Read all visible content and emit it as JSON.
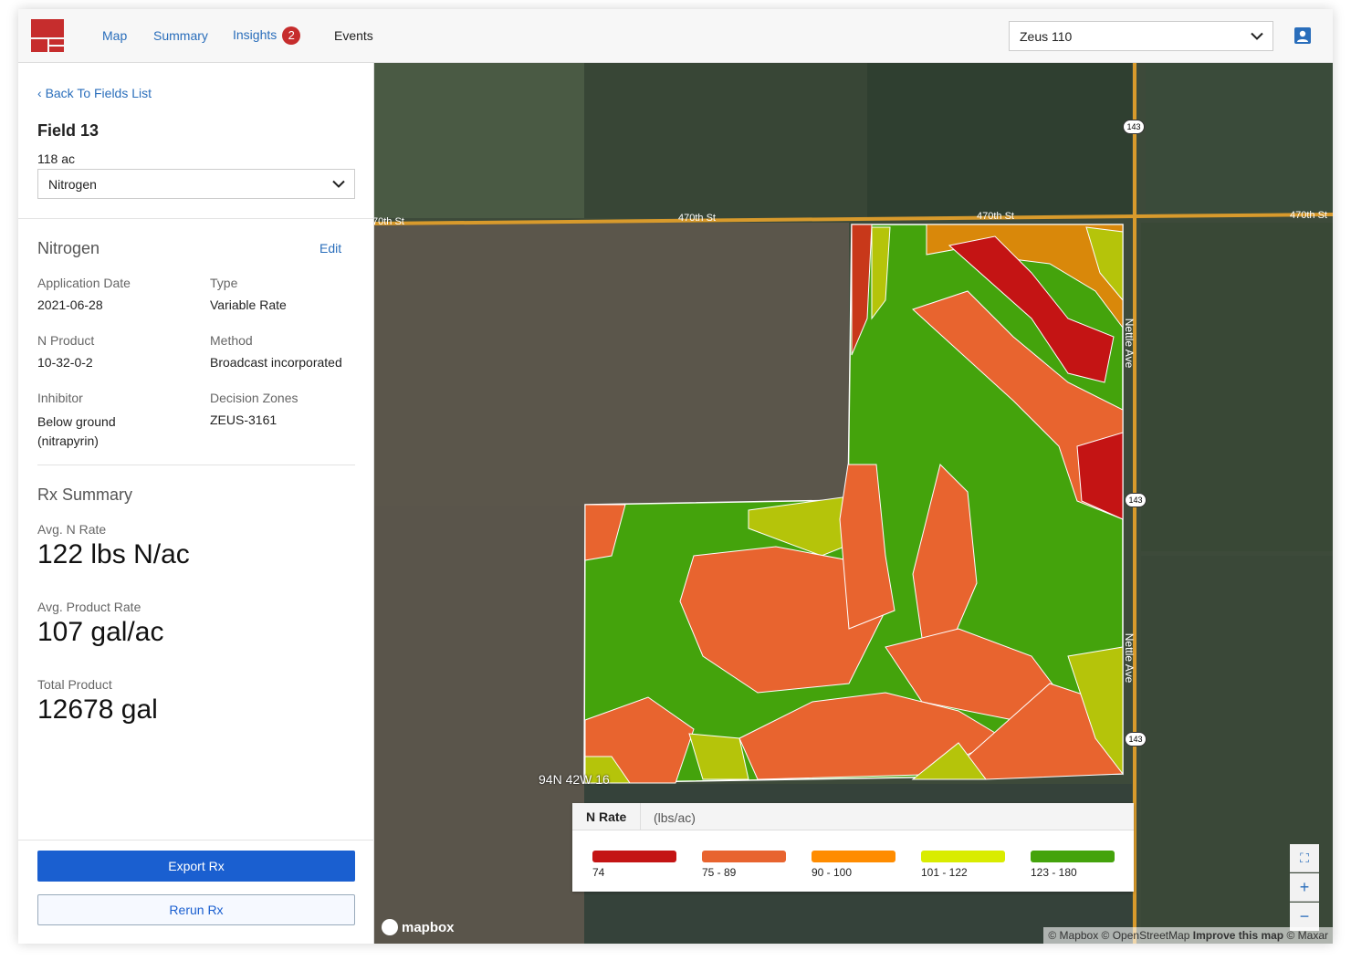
{
  "header": {
    "nav": [
      "Map",
      "Summary",
      "Insights",
      "Events"
    ],
    "insights_badge": "2",
    "machine_select": "Zeus 110",
    "brand_color": "#c62d2d"
  },
  "sidebar": {
    "back": "Back To Fields List",
    "field_name": "Field 13",
    "acres": "118 ac",
    "layer_select": "Nitrogen",
    "section_title": "Nitrogen",
    "edit": "Edit",
    "details": [
      {
        "label": "Application Date",
        "value": "2021-06-28"
      },
      {
        "label": "Type",
        "value": "Variable Rate"
      },
      {
        "label": "N Product",
        "value": "10-32-0-2"
      },
      {
        "label": "Method",
        "value": "Broadcast incorporated"
      },
      {
        "label": "Inhibitor",
        "value": "Below ground (nitrapyrin)"
      },
      {
        "label": "Decision Zones",
        "value": "ZEUS-3161"
      }
    ],
    "rx_title": "Rx Summary",
    "stats": [
      {
        "label": "Avg. N Rate",
        "value": "122 lbs N/ac"
      },
      {
        "label": "Avg. Product Rate",
        "value": "107 gal/ac"
      },
      {
        "label": "Total Product",
        "value": "12678 gal"
      }
    ],
    "export": "Export Rx",
    "rerun": "Rerun Rx"
  },
  "map": {
    "roads": {
      "street": "470th St",
      "street_left": "70th St",
      "avenue": "Nettle Ave",
      "shield": "143"
    },
    "section_label": "94N 42W 16",
    "mapbox": "mapbox",
    "attribution": "© Mapbox © OpenStreetMap",
    "improve": "Improve this map",
    "maxar": "© Maxar",
    "legend": {
      "title": "N Rate",
      "unit": "(lbs/ac)",
      "bins": [
        {
          "label": "74",
          "color": "#c41414"
        },
        {
          "label": "75 - 89",
          "color": "#e8642f"
        },
        {
          "label": "90 - 100",
          "color": "#ff8c00"
        },
        {
          "label": "101 - 122",
          "color": "#d9ec00"
        },
        {
          "label": "123 - 180",
          "color": "#44a30c"
        }
      ]
    }
  }
}
